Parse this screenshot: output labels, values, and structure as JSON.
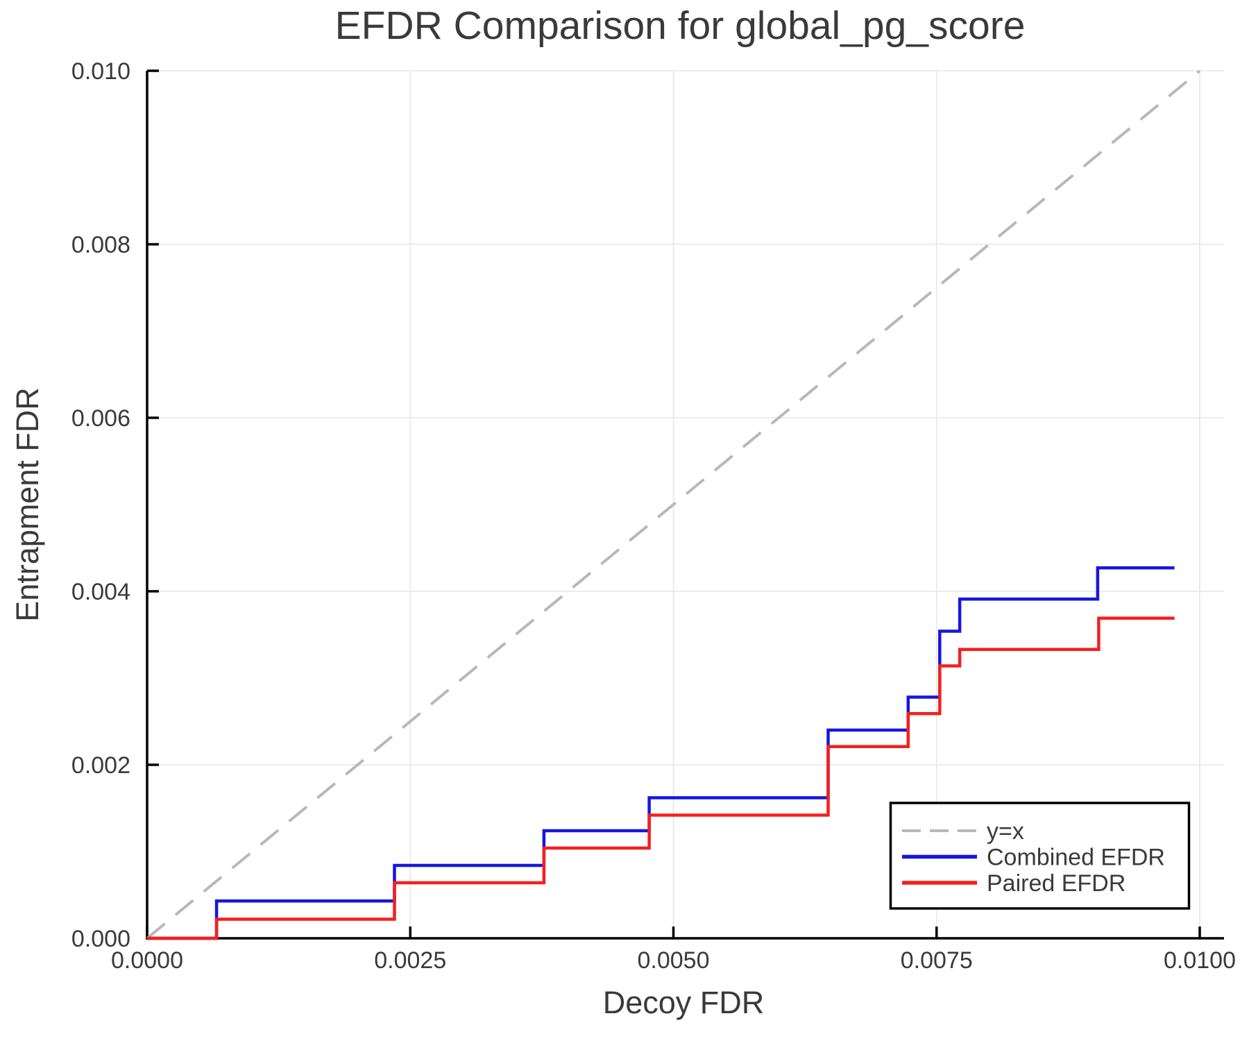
{
  "chart_data": {
    "type": "line",
    "title": "EFDR Comparison for global_pg_score",
    "xlabel": "Decoy FDR",
    "ylabel": "Entrapment FDR",
    "xlim": [
      0,
      0.01023
    ],
    "ylim": [
      0,
      0.01
    ],
    "grid": true,
    "legend_position": "bottom-right",
    "xticks": {
      "values": [
        0,
        0.0025,
        0.005,
        0.0075,
        0.01
      ],
      "labels": [
        "0.0000",
        "0.0025",
        "0.0050",
        "0.0075",
        "0.0100"
      ]
    },
    "yticks": {
      "values": [
        0,
        0.002,
        0.004,
        0.006,
        0.008,
        0.01
      ],
      "labels": [
        "0.000",
        "0.002",
        "0.004",
        "0.006",
        "0.008",
        "0.010"
      ]
    },
    "series": [
      {
        "name": "y=x",
        "kind": "reference",
        "style": "dashed",
        "color": "#b8b8b8",
        "points": [
          [
            0,
            0
          ],
          [
            0.01,
            0.01
          ]
        ]
      },
      {
        "name": "Combined EFDR",
        "kind": "step",
        "style": "solid",
        "color": "#1616e0",
        "points": [
          [
            0,
            0
          ],
          [
            0.00066,
            0
          ],
          [
            0.00066,
            0.00043
          ],
          [
            0.00235,
            0.00043
          ],
          [
            0.00235,
            0.00084
          ],
          [
            0.00377,
            0.00084
          ],
          [
            0.00377,
            0.00124
          ],
          [
            0.00477,
            0.00124
          ],
          [
            0.00477,
            0.00162
          ],
          [
            0.00647,
            0.00162
          ],
          [
            0.00647,
            0.0024
          ],
          [
            0.00723,
            0.0024
          ],
          [
            0.00723,
            0.00278
          ],
          [
            0.00753,
            0.00278
          ],
          [
            0.00753,
            0.00354
          ],
          [
            0.00772,
            0.00354
          ],
          [
            0.00772,
            0.00391
          ],
          [
            0.00903,
            0.00391
          ],
          [
            0.00903,
            0.00427
          ],
          [
            0.00976,
            0.00427
          ]
        ]
      },
      {
        "name": "Paired EFDR",
        "kind": "step",
        "style": "solid",
        "color": "#f51f1f",
        "points": [
          [
            0,
            0
          ],
          [
            0.00066,
            0
          ],
          [
            0.00066,
            0.00022
          ],
          [
            0.00235,
            0.00022
          ],
          [
            0.00235,
            0.00064
          ],
          [
            0.00377,
            0.00064
          ],
          [
            0.00377,
            0.00104
          ],
          [
            0.00477,
            0.00104
          ],
          [
            0.00477,
            0.00142
          ],
          [
            0.00647,
            0.00142
          ],
          [
            0.00647,
            0.00221
          ],
          [
            0.00723,
            0.00221
          ],
          [
            0.00723,
            0.00259
          ],
          [
            0.00753,
            0.00259
          ],
          [
            0.00753,
            0.00314
          ],
          [
            0.00772,
            0.00314
          ],
          [
            0.00772,
            0.00333
          ],
          [
            0.00904,
            0.00333
          ],
          [
            0.00904,
            0.00369
          ],
          [
            0.00976,
            0.00369
          ]
        ]
      }
    ]
  },
  "colors": {
    "text": "#3a3a3a",
    "axis": "#000000",
    "grid": "#e9e9e9",
    "background": "#ffffff",
    "legend_border": "#000000"
  }
}
